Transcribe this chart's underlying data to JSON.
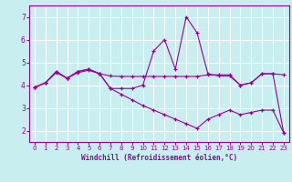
{
  "title": "",
  "xlabel": "Windchill (Refroidissement éolien,°C)",
  "ylabel": "",
  "background_color": "#c8eef0",
  "grid_color": "#ffffff",
  "line_color": "#990099",
  "xlim": [
    -0.5,
    23.5
  ],
  "ylim": [
    1.5,
    7.5
  ],
  "xticks": [
    0,
    1,
    2,
    3,
    4,
    5,
    6,
    7,
    8,
    9,
    10,
    11,
    12,
    13,
    14,
    15,
    16,
    17,
    18,
    19,
    20,
    21,
    22,
    23
  ],
  "yticks": [
    2,
    3,
    4,
    5,
    6,
    7
  ],
  "line1": [
    3.9,
    4.1,
    4.6,
    4.3,
    4.6,
    4.7,
    4.5,
    3.85,
    3.85,
    3.85,
    4.0,
    5.5,
    6.0,
    4.7,
    7.0,
    6.3,
    4.5,
    4.4,
    4.4,
    4.0,
    4.1,
    4.5,
    4.5,
    1.9
  ],
  "line2": [
    3.9,
    4.1,
    4.55,
    4.3,
    4.55,
    4.65,
    4.5,
    4.4,
    4.38,
    4.38,
    4.38,
    4.38,
    4.38,
    4.38,
    4.38,
    4.38,
    4.45,
    4.45,
    4.45,
    4.0,
    4.1,
    4.5,
    4.5,
    4.45
  ],
  "line3": [
    3.9,
    4.1,
    4.6,
    4.3,
    4.6,
    4.7,
    4.5,
    3.85,
    3.6,
    3.35,
    3.1,
    2.9,
    2.7,
    2.5,
    2.3,
    2.1,
    2.5,
    2.7,
    2.9,
    2.7,
    2.8,
    2.9,
    2.9,
    1.9
  ]
}
